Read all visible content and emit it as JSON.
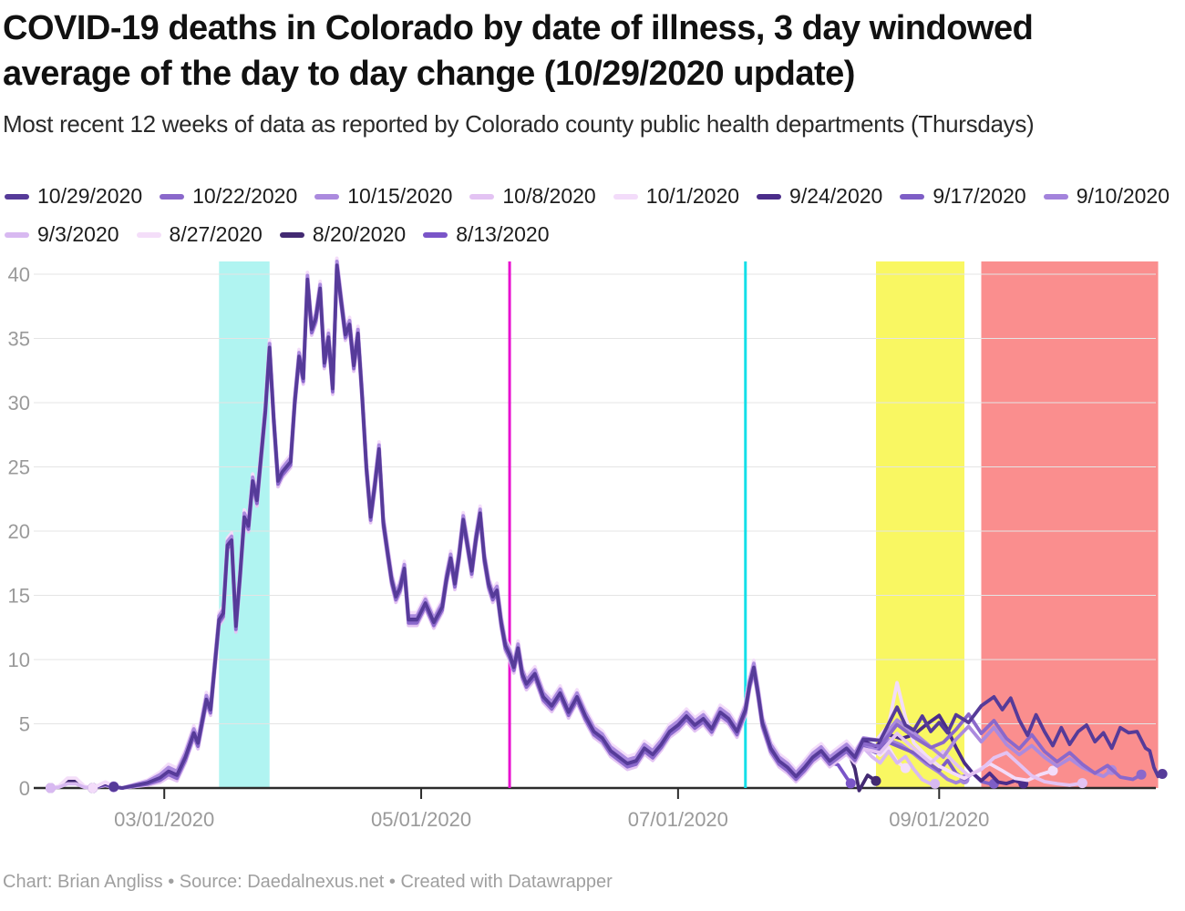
{
  "header": {
    "title_line1": "COVID-19 deaths in Colorado by date of illness, 3 day windowed",
    "title_line2": "average of the day to day change (10/29/2020 update)",
    "subtitle": "Most recent 12 weeks of data as reported by Colorado county public health departments (Thursdays)"
  },
  "footer": {
    "text": "Chart: Brian Angliss • Source: Daedalnexus.net • Created with Datawrapper"
  },
  "chart_data": {
    "type": "line",
    "title": "COVID-19 deaths in Colorado by date of illness, 3 day windowed average of the day to day change (10/29/2020 update)",
    "subtitle": "Most recent 12 weeks of data as reported by Colorado county public health departments (Thursdays)",
    "grid": true,
    "legend_position": "top",
    "ylim": [
      0,
      41
    ],
    "y_ticks": [
      0,
      5,
      10,
      15,
      20,
      25,
      30,
      35,
      40
    ],
    "x_ticks": [
      {
        "label": "03/01/2020",
        "date": "03/01"
      },
      {
        "label": "05/01/2020",
        "date": "05/01"
      },
      {
        "label": "07/01/2020",
        "date": "07/01"
      },
      {
        "label": "09/01/2020",
        "date": "09/01"
      }
    ],
    "x_domain": {
      "start": "01/30",
      "end": "10/24"
    },
    "axis_color": "#2b2b2b",
    "grid_color": "#e4e4e4",
    "tick_label_color": "#9a9a9a",
    "annotations": {
      "bands": [
        {
          "name": "march-highlight-band",
          "from": "03/14",
          "to": "03/26",
          "color": "#b0f4f1"
        },
        {
          "name": "yellow-highlight-band",
          "from": "08/17",
          "to": "09/07",
          "color": "#f9f762"
        },
        {
          "name": "red-highlight-band",
          "from": "09/11",
          "to": "10/23",
          "color": "#fa8e8e"
        }
      ],
      "vlines": [
        {
          "name": "magenta-date-line",
          "at": "05/22",
          "color": "#e811cf"
        },
        {
          "name": "cyan-date-line",
          "at": "07/17",
          "color": "#14dfe8"
        }
      ]
    },
    "common_history": {
      "dates": [
        "02/03",
        "02/05",
        "02/07",
        "02/09",
        "02/11",
        "02/13",
        "02/16",
        "02/18",
        "02/20",
        "02/23",
        "02/26",
        "02/29",
        "03/02",
        "03/04",
        "03/06",
        "03/08",
        "03/09",
        "03/11",
        "03/12",
        "03/14",
        "03/15",
        "03/16",
        "03/17",
        "03/18",
        "03/19",
        "03/20",
        "03/21",
        "03/22",
        "03/23",
        "03/25",
        "03/26",
        "03/27",
        "03/28",
        "03/29",
        "03/31",
        "04/01",
        "04/02",
        "04/03",
        "04/04",
        "04/05",
        "04/06",
        "04/07",
        "04/08",
        "04/09",
        "04/10",
        "04/11",
        "04/12",
        "04/13",
        "04/14",
        "04/15",
        "04/16",
        "04/17",
        "04/18",
        "04/19",
        "04/20",
        "04/21",
        "04/22",
        "04/23",
        "04/24",
        "04/25",
        "04/26",
        "04/27",
        "04/28",
        "04/30",
        "05/02",
        "05/04",
        "05/06",
        "05/07",
        "05/08",
        "05/09",
        "05/10",
        "05/11",
        "05/12",
        "05/13",
        "05/14",
        "05/15",
        "05/16",
        "05/17",
        "05/18",
        "05/19",
        "05/20",
        "05/21",
        "05/22",
        "05/23",
        "05/24",
        "05/25",
        "05/26",
        "05/28",
        "05/30",
        "06/01",
        "06/03",
        "06/05",
        "06/07",
        "06/09",
        "06/11",
        "06/13",
        "06/15",
        "06/17",
        "06/19",
        "06/21",
        "06/23",
        "06/25",
        "06/27",
        "06/29",
        "07/01",
        "07/03",
        "07/05",
        "07/07",
        "07/09",
        "07/11",
        "07/13",
        "07/15",
        "07/17",
        "07/18",
        "07/19",
        "07/20",
        "07/21",
        "07/23",
        "07/25",
        "07/27",
        "07/29",
        "07/31",
        "08/02",
        "08/04",
        "08/06",
        "08/08",
        "08/10",
        "08/12"
      ],
      "values": [
        0,
        0.1,
        0.5,
        0.5,
        0.1,
        0,
        0.3,
        0.1,
        0,
        0.2,
        0.4,
        0.8,
        1.3,
        1.0,
        2.4,
        4.3,
        3.5,
        6.9,
        6.1,
        13.1,
        13.6,
        18.9,
        19.3,
        12.6,
        16.6,
        21.1,
        20.4,
        23.9,
        22.4,
        29.4,
        34.3,
        28.7,
        23.9,
        24.6,
        25.4,
        30.1,
        33.6,
        31.9,
        39.6,
        35.7,
        36.6,
        38.9,
        33.1,
        35.1,
        31.1,
        40.7,
        37.9,
        35.3,
        36.1,
        32.9,
        35.4,
        30.4,
        24.9,
        21.1,
        23.6,
        26.4,
        20.7,
        18.4,
        16.2,
        14.9,
        15.6,
        17.1,
        13.1,
        13.1,
        14.4,
        12.9,
        14.1,
        16.3,
        17.9,
        15.9,
        18.1,
        20.9,
        18.9,
        16.9,
        19.4,
        21.4,
        17.9,
        15.9,
        14.9,
        15.4,
        12.9,
        11.1,
        10.4,
        9.4,
        10.9,
        8.9,
        8.1,
        8.9,
        7.1,
        6.4,
        7.4,
        5.9,
        7.1,
        5.6,
        4.4,
        3.9,
        2.9,
        2.4,
        1.9,
        2.1,
        3.1,
        2.6,
        3.4,
        4.4,
        4.9,
        5.6,
        4.9,
        5.4,
        4.6,
        5.9,
        5.4,
        4.4,
        6.1,
        8.1,
        9.4,
        7.4,
        5.1,
        3.1,
        2.1,
        1.6,
        0.9,
        1.6,
        2.4,
        2.9,
        2.1,
        2.6,
        3.1,
        2.4
      ]
    },
    "series": [
      {
        "label": "10/29/2020",
        "color": "#563b99",
        "start": "02/18",
        "hist_until": "08/12",
        "fringe_offset": 0,
        "tail_dates": [
          "08/14",
          "08/18",
          "08/22",
          "08/24",
          "08/26",
          "08/28",
          "08/30",
          "09/01",
          "09/03",
          "09/05",
          "09/08",
          "09/11",
          "09/14",
          "09/16",
          "09/18",
          "09/20",
          "09/22",
          "09/24",
          "09/26",
          "09/28",
          "09/30",
          "10/02",
          "10/04",
          "10/06",
          "10/08",
          "10/10",
          "10/12",
          "10/14",
          "10/16",
          "10/18",
          "10/20",
          "10/21",
          "10/22",
          "10/23",
          "10/24"
        ],
        "tail_values": [
          3.8,
          3.7,
          6.3,
          4.9,
          4.5,
          5.6,
          4.4,
          5.1,
          4.3,
          5.7,
          5.1,
          6.4,
          7.1,
          6.1,
          7.0,
          5.3,
          4.1,
          5.7,
          4.4,
          3.3,
          4.7,
          3.4,
          4.4,
          4.9,
          3.6,
          4.3,
          3.1,
          4.7,
          4.3,
          4.4,
          3.1,
          2.9,
          1.6,
          0.9,
          1.1
        ]
      },
      {
        "label": "10/22/2020",
        "color": "#8a68cb",
        "start": "02/18",
        "hist_until": "08/12",
        "fringe_offset": -0.25,
        "tail_dates": [
          "08/14",
          "08/18",
          "08/22",
          "08/26",
          "08/30",
          "09/02",
          "09/05",
          "09/08",
          "09/11",
          "09/14",
          "09/17",
          "09/20",
          "09/23",
          "09/26",
          "09/29",
          "10/02",
          "10/05",
          "10/08",
          "10/11",
          "10/14",
          "10/17",
          "10/19"
        ],
        "tail_values": [
          3.7,
          3.5,
          5.2,
          4.2,
          3.4,
          3.8,
          4.8,
          6.0,
          4.5,
          5.5,
          4.1,
          3.3,
          4.4,
          3.1,
          2.3,
          3.0,
          2.1,
          1.4,
          2.0,
          1.1,
          0.9,
          1.3
        ]
      },
      {
        "label": "10/15/2020",
        "color": "#ab8ade",
        "start": "02/18",
        "hist_until": "08/12",
        "fringe_offset": 0.3,
        "tail_dates": [
          "08/14",
          "08/18",
          "08/22",
          "08/26",
          "08/30",
          "09/02",
          "09/05",
          "09/08",
          "09/11",
          "09/14",
          "09/17",
          "09/20",
          "09/23",
          "09/26",
          "09/29",
          "10/02",
          "10/05",
          "10/08",
          "10/10",
          "10/12"
        ],
        "tail_values": [
          3.6,
          3.4,
          5.0,
          4.0,
          2.9,
          2.1,
          3.5,
          4.5,
          3.3,
          4.4,
          3.1,
          2.3,
          3.0,
          2.1,
          1.4,
          2.0,
          1.3,
          0.9,
          0.7,
          1.1
        ]
      },
      {
        "label": "10/8/2020",
        "color": "#e3c3f3",
        "start": "02/18",
        "hist_until": "08/12",
        "fringe_offset": -0.45,
        "tail_dates": [
          "08/14",
          "08/18",
          "08/22",
          "08/26",
          "08/30",
          "09/02",
          "09/05",
          "09/08",
          "09/11",
          "09/14",
          "09/17",
          "09/20",
          "09/23",
          "09/26",
          "09/29",
          "10/02",
          "10/05"
        ],
        "tail_values": [
          3.5,
          3.2,
          4.7,
          3.5,
          2.4,
          3.3,
          2.3,
          1.4,
          1.9,
          2.8,
          3.2,
          2.3,
          1.4,
          0.9,
          0.6,
          0.4,
          0.7
        ]
      },
      {
        "label": "10/1/2020",
        "color": "#f3dcfa",
        "start": "02/13",
        "hist_until": "08/12",
        "fringe_offset": 0.5,
        "tail_dates": [
          "08/14",
          "08/17",
          "08/20",
          "08/22",
          "08/24",
          "08/26",
          "08/29",
          "09/01",
          "09/04",
          "09/07",
          "09/10",
          "09/13",
          "09/16",
          "09/19",
          "09/22",
          "09/25",
          "09/28"
        ],
        "tail_values": [
          3.4,
          3.2,
          4.4,
          7.7,
          5.0,
          3.0,
          2.0,
          1.2,
          0.8,
          0.5,
          0.9,
          1.4,
          0.9,
          0.5,
          0.4,
          0.7,
          0.9
        ]
      },
      {
        "label": "9/24/2020",
        "color": "#4b2d8a",
        "start": "02/13",
        "hist_until": "08/12",
        "fringe_offset": 0.15,
        "tail_dates": [
          "08/14",
          "08/17",
          "08/20",
          "08/23",
          "08/26",
          "08/29",
          "09/01",
          "09/03",
          "09/05",
          "09/07",
          "09/09",
          "09/11",
          "09/13",
          "09/15",
          "09/17",
          "09/19",
          "09/21"
        ],
        "tail_values": [
          3.5,
          3.1,
          4.0,
          3.7,
          4.0,
          4.8,
          5.5,
          4.4,
          3.0,
          1.8,
          1.0,
          0.5,
          1.0,
          0.4,
          0.3,
          0.5,
          0.3
        ]
      },
      {
        "label": "9/17/2020",
        "color": "#7e5ec6",
        "start": "02/13",
        "hist_until": "08/12",
        "fringe_offset": -0.15,
        "tail_dates": [
          "08/14",
          "08/17",
          "08/20",
          "08/23",
          "08/26",
          "08/29",
          "09/01",
          "09/03",
          "09/05",
          "09/07",
          "09/09",
          "09/11",
          "09/13",
          "09/14"
        ],
        "tail_values": [
          3.3,
          2.9,
          3.7,
          3.3,
          2.9,
          2.2,
          1.5,
          2.3,
          1.3,
          0.8,
          1.3,
          0.6,
          0.4,
          0.4
        ]
      },
      {
        "label": "9/10/2020",
        "color": "#a383dc",
        "start": "02/13",
        "hist_until": "08/12",
        "fringe_offset": 0.35,
        "tail_dates": [
          "08/14",
          "08/17",
          "08/20",
          "08/23",
          "08/26",
          "08/29",
          "09/01",
          "09/03",
          "09/05",
          "09/07"
        ],
        "tail_values": [
          3.1,
          2.6,
          3.4,
          3.0,
          2.3,
          1.5,
          0.9,
          0.5,
          0.3,
          0.5
        ]
      },
      {
        "label": "9/3/2020",
        "color": "#d8b9f1",
        "start": "02/03",
        "hist_until": "08/12",
        "fringe_offset": -0.35,
        "tail_dates": [
          "08/14",
          "08/16",
          "08/18",
          "08/20",
          "08/22",
          "08/24",
          "08/26",
          "08/28",
          "08/30",
          "08/31"
        ],
        "tail_values": [
          3.5,
          2.8,
          2.3,
          3.2,
          2.3,
          2.8,
          1.8,
          1.0,
          0.5,
          0.5
        ]
      },
      {
        "label": "8/27/2020",
        "color": "#f4def9",
        "start": "02/03",
        "hist_until": "08/12",
        "fringe_offset": 0.55,
        "tail_dates": [
          "08/14",
          "08/16",
          "08/18",
          "08/20",
          "08/22",
          "08/24"
        ],
        "tail_values": [
          3.3,
          2.5,
          2.0,
          2.6,
          1.5,
          1.0
        ]
      },
      {
        "label": "8/20/2020",
        "color": "#432a72",
        "start": "02/03",
        "hist_until": "08/10",
        "fringe_offset": 0.1,
        "tail_dates": [
          "08/12",
          "08/13",
          "08/15",
          "08/17"
        ],
        "tail_values": [
          1.4,
          -0.2,
          0.9,
          0.5
        ]
      },
      {
        "label": "8/13/2020",
        "color": "#7a55c8",
        "start": "02/03",
        "hist_until": "08/06",
        "fringe_offset": -0.1,
        "tail_dates": [
          "08/08",
          "08/10",
          "08/11"
        ],
        "tail_values": [
          1.9,
          0.9,
          0.4
        ]
      }
    ]
  }
}
